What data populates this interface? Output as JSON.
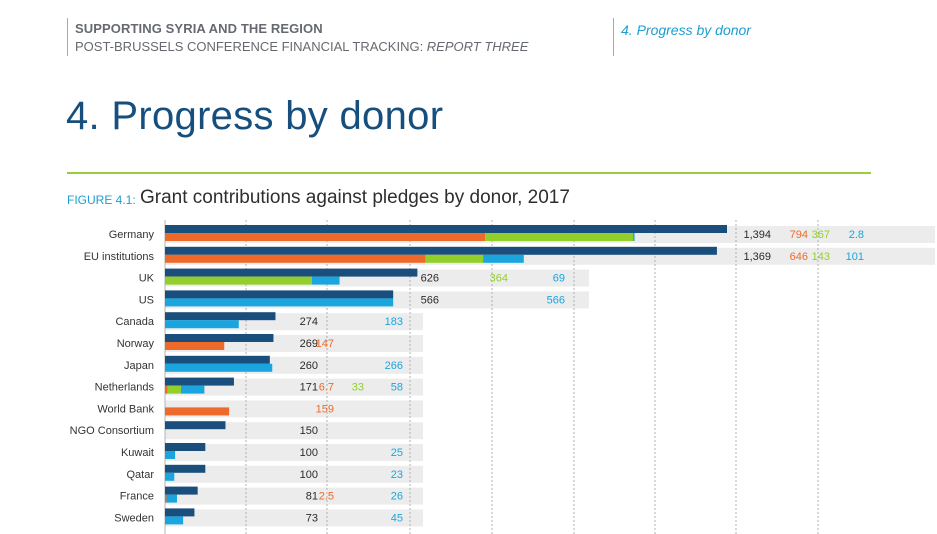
{
  "header": {
    "line1": "SUPPORTING SYRIA AND THE REGION",
    "line2_prefix": "POST-BRUSSELS CONFERENCE FINANCIAL TRACKING: ",
    "line2_italic": "REPORT THREE",
    "section": "4. Progress by donor"
  },
  "page_title": "4. Progress by donor",
  "figure": {
    "label": "FIGURE 4.1:",
    "title": "Grant contributions against pledges by donor, 2017"
  },
  "colors": {
    "pledge": "#1a4e7d",
    "orange": "#ee6a2a",
    "green": "#93cf2a",
    "cyan": "#1aa5de",
    "row_bg": "#ececec",
    "text": "#333333"
  },
  "chart_data": {
    "type": "bar",
    "categories": [
      "Germany",
      "EU institutions",
      "UK",
      "US",
      "Canada",
      "Norway",
      "Japan",
      "Netherlands",
      "World Bank",
      "NGO Consortium",
      "Kuwait",
      "Qatar",
      "France",
      "Sweden"
    ],
    "series": [
      {
        "key": "pledge",
        "values": [
          1394,
          1369,
          626,
          566,
          274,
          269,
          260,
          171,
          null,
          150,
          100,
          100,
          81,
          73
        ]
      },
      {
        "key": "orange",
        "values": [
          794,
          646,
          null,
          null,
          null,
          147,
          null,
          6.7,
          159,
          null,
          null,
          null,
          2.5,
          null
        ]
      },
      {
        "key": "green",
        "values": [
          367,
          143,
          364,
          null,
          null,
          null,
          null,
          33,
          null,
          null,
          null,
          null,
          null,
          null
        ]
      },
      {
        "key": "cyan",
        "values": [
          2.8,
          101,
          69,
          566,
          183,
          null,
          266,
          58,
          null,
          null,
          25,
          23,
          26,
          45
        ]
      }
    ],
    "value_labels": {
      "pledge": [
        "1,394",
        "1,369",
        "626",
        "566",
        "274",
        "269",
        "260",
        "171",
        "",
        "150",
        "100",
        "100",
        "81",
        "73"
      ],
      "orange": [
        "794",
        "646",
        "",
        "",
        "",
        "147",
        "",
        "6.7",
        "159",
        "",
        "",
        "",
        "2.5",
        ""
      ],
      "green": [
        "367",
        "143",
        "364",
        "",
        "",
        "",
        "",
        "33",
        "",
        "",
        "",
        "",
        "",
        ""
      ],
      "cyan": [
        "2.8",
        "101",
        "69",
        "566",
        "183",
        "",
        "266",
        "58",
        "",
        "",
        "25",
        "23",
        "26",
        "45"
      ]
    },
    "xlim": [
      0,
      1394
    ],
    "grid": true
  }
}
